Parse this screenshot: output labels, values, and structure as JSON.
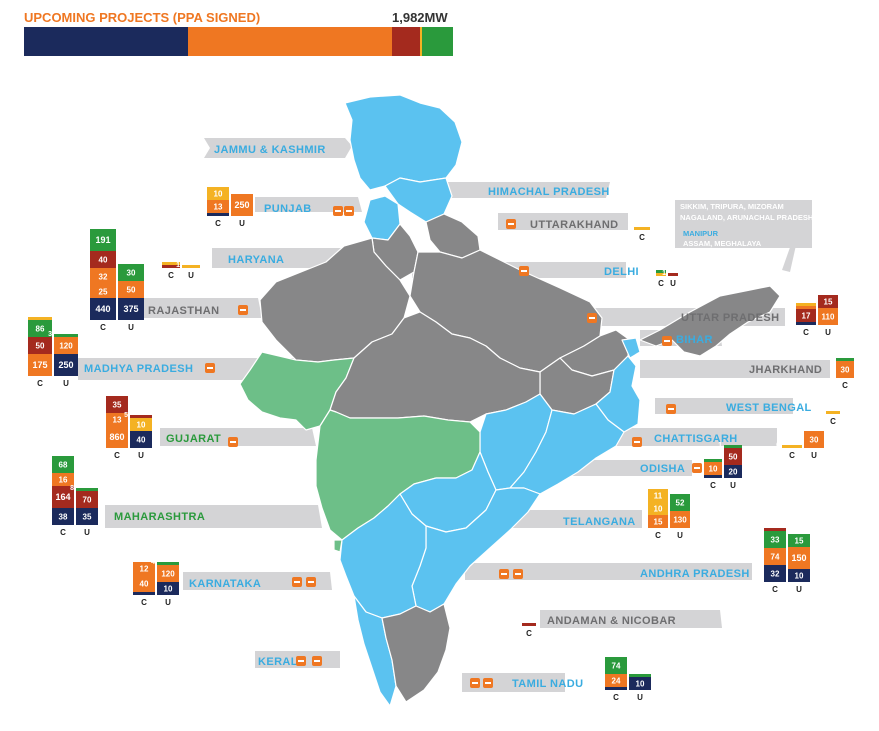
{
  "title": "UPCOMING PROJECTS (PPA SIGNED)",
  "total": "1,982MW",
  "colors": {
    "navy": "#1b2a5c",
    "orange": "#ef7722",
    "red": "#a42a1e",
    "yellow": "#f4b223",
    "green": "#2a9a3c",
    "blue_state": "#5bc2f0",
    "gray_state": "#878788",
    "green_state": "#6dbf88",
    "banner": "#d4d4d6",
    "label_blue": "#3aace0",
    "label_gray": "#6e6e70"
  },
  "summary_bar": [
    {
      "color": "navy",
      "share": 0.382
    },
    {
      "color": "orange",
      "share": 0.475
    },
    {
      "color": "red",
      "share": 0.066
    },
    {
      "color": "yellow",
      "share": 0.005
    },
    {
      "color": "green",
      "share": 0.071
    }
  ],
  "axis_labels": {
    "c": "C",
    "u": "U"
  },
  "states": [
    {
      "name": "JAMMU & KASHMIR"
    },
    {
      "name": "HIMACHAL PRADESH"
    },
    {
      "name": "PUNJAB",
      "c": [
        {
          "v": "7",
          "c": "navy"
        },
        {
          "v": "13",
          "c": "orange"
        },
        {
          "v": "10",
          "c": "yellow"
        }
      ],
      "u": [
        {
          "v": "250",
          "c": "orange"
        }
      ]
    },
    {
      "name": "UTTARAKHAND",
      "c": [
        {
          "v": "5",
          "c": "yellow"
        }
      ]
    },
    {
      "name": "HARYANA",
      "c": [
        {
          "v": "5",
          "c": "red"
        },
        {
          "v": "8",
          "c": "yellow"
        }
      ],
      "u": [
        {
          "v": "1",
          "c": "yellow"
        }
      ]
    },
    {
      "name": "DELHI",
      "c": [
        {
          "v": "2",
          "c": "yellow"
        },
        {
          "v": "2",
          "c": "green"
        }
      ],
      "u": [
        {
          "v": "1",
          "c": "red"
        }
      ]
    },
    {
      "name": "RAJASTHAN",
      "c": [
        {
          "v": "440",
          "c": "navy"
        },
        {
          "v": "25",
          "c": "orange"
        },
        {
          "v": "32",
          "c": "orange"
        },
        {
          "v": "40",
          "c": "red"
        },
        {
          "v": "191",
          "c": "green"
        }
      ],
      "u": [
        {
          "v": "375",
          "c": "navy"
        },
        {
          "v": "50",
          "c": "orange"
        },
        {
          "v": "30",
          "c": "green"
        }
      ]
    },
    {
      "name": "UTTAR PRADESH",
      "c": [
        {
          "v": "5",
          "c": "navy"
        },
        {
          "v": "17",
          "c": "red"
        },
        {
          "v": "8",
          "c": "orange"
        },
        {
          "v": "6",
          "c": "yellow"
        }
      ],
      "u": [
        {
          "v": "110",
          "c": "orange"
        },
        {
          "v": "15",
          "c": "red"
        }
      ]
    },
    {
      "name": "SIKKIM, TRIPURA, MIZORAM NAGALAND, ARUNACHAL PRADESH"
    },
    {
      "name": "MANIPUR ASSAM, MEGHALAYA"
    },
    {
      "name": "BIHAR"
    },
    {
      "name": "MADHYA PRADESH",
      "c": [
        {
          "v": "175",
          "c": "orange"
        },
        {
          "v": "50",
          "c": "red"
        },
        {
          "v": "86",
          "c": "green"
        },
        {
          "v": "3",
          "c": "yellow"
        }
      ],
      "u": [
        {
          "v": "250",
          "c": "navy"
        },
        {
          "v": "120",
          "c": "orange"
        },
        {
          "v": "3",
          "c": "green"
        }
      ]
    },
    {
      "name": "JHARKHAND",
      "c": [
        {
          "v": "30",
          "c": "orange"
        },
        {
          "v": "2",
          "c": "green"
        }
      ]
    },
    {
      "name": "WEST BENGAL",
      "c": [
        {
          "v": "7",
          "c": "yellow"
        }
      ]
    },
    {
      "name": "GUJARAT",
      "c": [
        {
          "v": "860",
          "c": "orange"
        },
        {
          "v": "13",
          "c": "orange"
        },
        {
          "v": "35",
          "c": "red"
        }
      ],
      "u": [
        {
          "v": "40",
          "c": "navy"
        },
        {
          "v": "10",
          "c": "yellow"
        },
        {
          "v": "5",
          "c": "red"
        }
      ]
    },
    {
      "name": "CHATTISGARH",
      "c": [
        {
          "v": "6",
          "c": "yellow"
        }
      ],
      "u": [
        {
          "v": "30",
          "c": "orange"
        }
      ]
    },
    {
      "name": "ODISHA",
      "c": [
        {
          "v": "5",
          "c": "navy"
        },
        {
          "v": "10",
          "c": "orange"
        },
        {
          "v": "3",
          "c": "green"
        }
      ],
      "u": [
        {
          "v": "20",
          "c": "navy"
        },
        {
          "v": "50",
          "c": "red"
        },
        {
          "v": "1",
          "c": "green"
        }
      ]
    },
    {
      "name": "MAHARASHTRA",
      "c": [
        {
          "v": "38",
          "c": "navy"
        },
        {
          "v": "164",
          "c": "red"
        },
        {
          "v": "16",
          "c": "orange"
        },
        {
          "v": "68",
          "c": "green"
        }
      ],
      "u": [
        {
          "v": "35",
          "c": "navy"
        },
        {
          "v": "70",
          "c": "red"
        },
        {
          "v": "8",
          "c": "green"
        }
      ]
    },
    {
      "name": "TELANGANA",
      "c": [
        {
          "v": "15",
          "c": "orange"
        },
        {
          "v": "10",
          "c": "yellow"
        },
        {
          "v": "11",
          "c": "yellow"
        }
      ],
      "u": [
        {
          "v": "130",
          "c": "orange"
        },
        {
          "v": "52",
          "c": "green"
        }
      ]
    },
    {
      "name": "ANDHRA PRADESH",
      "c": [
        {
          "v": "32",
          "c": "navy"
        },
        {
          "v": "74",
          "c": "orange"
        },
        {
          "v": "33",
          "c": "green"
        },
        {
          "v": "5",
          "c": "red"
        }
      ],
      "u": [
        {
          "v": "10",
          "c": "navy"
        },
        {
          "v": "150",
          "c": "orange"
        },
        {
          "v": "15",
          "c": "green"
        }
      ]
    },
    {
      "name": "KARNATAKA",
      "c": [
        {
          "v": "5",
          "c": "navy"
        },
        {
          "v": "40",
          "c": "orange"
        },
        {
          "v": "12",
          "c": "orange"
        }
      ],
      "u": [
        {
          "v": "10",
          "c": "navy"
        },
        {
          "v": "120",
          "c": "orange"
        },
        {
          "v": "4",
          "c": "green"
        }
      ]
    },
    {
      "name": "ANDAMAN & NICOBAR",
      "c": [
        {
          "v": "5",
          "c": "red"
        }
      ]
    },
    {
      "name": "KERALA"
    },
    {
      "name": "TAMIL NADU",
      "c": [
        {
          "v": "5",
          "c": "navy"
        },
        {
          "v": "24",
          "c": "orange"
        },
        {
          "v": "74",
          "c": "green"
        }
      ],
      "u": [
        {
          "v": "10",
          "c": "navy"
        },
        {
          "v": "9",
          "c": "green"
        }
      ]
    }
  ]
}
